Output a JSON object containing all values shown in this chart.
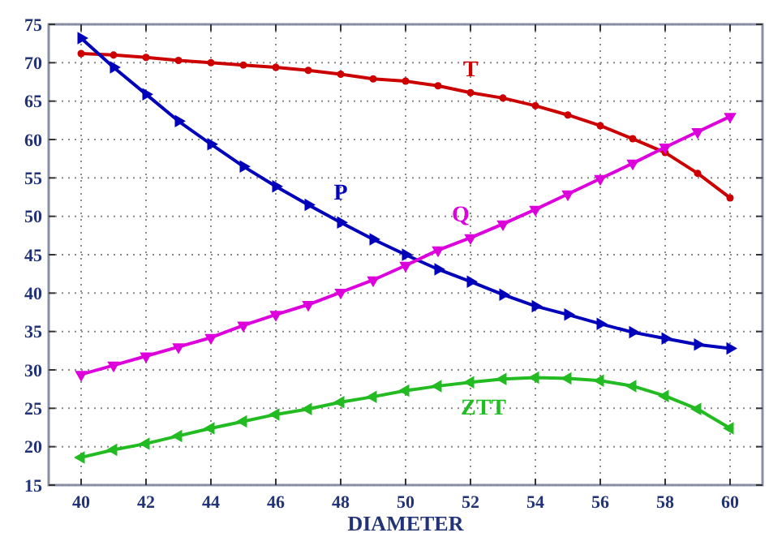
{
  "chart_data": {
    "type": "line",
    "xlabel": "DIAMETER",
    "x": [
      40,
      41,
      42,
      43,
      44,
      45,
      46,
      47,
      48,
      49,
      50,
      51,
      52,
      53,
      54,
      55,
      56,
      57,
      58,
      59,
      60
    ],
    "xlim": [
      39,
      61
    ],
    "xticks": [
      40,
      42,
      44,
      46,
      48,
      50,
      52,
      54,
      56,
      58,
      60
    ],
    "ylim": [
      15,
      75
    ],
    "yticks": [
      15,
      20,
      25,
      30,
      35,
      40,
      45,
      50,
      55,
      60,
      65,
      70,
      75
    ],
    "grid": true,
    "marker": "triangle",
    "line_style": "solid",
    "series": [
      {
        "name": "T",
        "color": "#cc0000",
        "marker": "circle",
        "values": [
          71.2,
          71.0,
          70.7,
          70.3,
          70.0,
          69.7,
          69.4,
          69.0,
          68.5,
          67.9,
          67.6,
          67.0,
          66.1,
          65.4,
          64.4,
          63.2,
          61.8,
          60.1,
          58.3,
          55.6,
          52.4
        ]
      },
      {
        "name": "P",
        "color": "#0000bb",
        "values": [
          73.2,
          69.4,
          65.9,
          62.4,
          59.4,
          56.5,
          53.9,
          51.5,
          49.2,
          47.0,
          45.0,
          43.1,
          41.5,
          39.8,
          38.3,
          37.2,
          36.0,
          34.9,
          34.1,
          33.3,
          32.8
        ]
      },
      {
        "name": "Q",
        "color": "#dd00dd",
        "values": [
          29.4,
          30.6,
          31.8,
          33.0,
          34.2,
          35.8,
          37.2,
          38.5,
          40.1,
          41.7,
          43.6,
          45.6,
          47.2,
          49.0,
          50.9,
          52.9,
          54.9,
          56.9,
          59.0,
          61.0,
          63.0
        ]
      },
      {
        "name": "ZTT",
        "color": "#22bb22",
        "values": [
          18.6,
          19.6,
          20.4,
          21.4,
          22.4,
          23.3,
          24.2,
          24.9,
          25.8,
          26.5,
          27.3,
          27.9,
          28.4,
          28.8,
          29.0,
          28.9,
          28.6,
          27.9,
          26.6,
          24.9,
          22.4
        ]
      }
    ]
  }
}
